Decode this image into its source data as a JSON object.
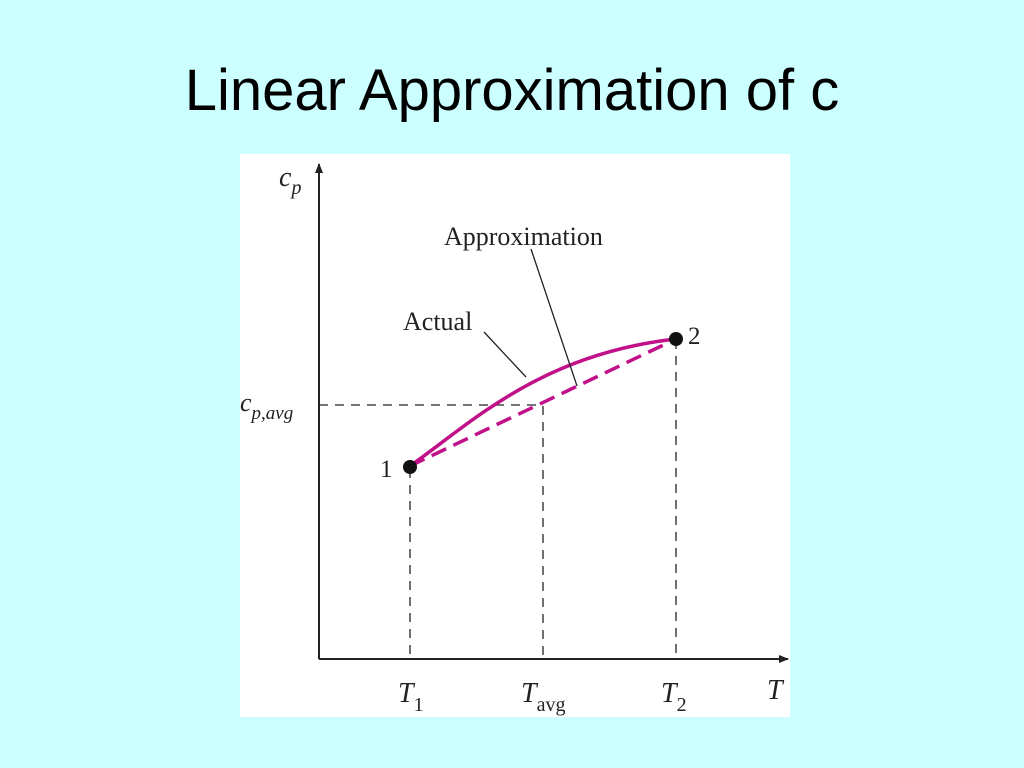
{
  "slide": {
    "title": "Linear Approximation of c"
  },
  "diagram": {
    "axis_y_label_main": "c",
    "axis_y_label_sub": "p",
    "axis_x_label": "T",
    "cp_avg_main": "c",
    "cp_avg_sub": "p,avg",
    "tick_t1_main": "T",
    "tick_t1_sub": "1",
    "tick_tavg_main": "T",
    "tick_tavg_sub": "avg",
    "tick_t2_main": "T",
    "tick_t2_sub": "2",
    "point1_label": "1",
    "point2_label": "2",
    "label_actual": "Actual",
    "label_approximation": "Approximation",
    "colors": {
      "curve": "#c0108a",
      "axes": "#222222",
      "background": "#ccffff"
    }
  }
}
